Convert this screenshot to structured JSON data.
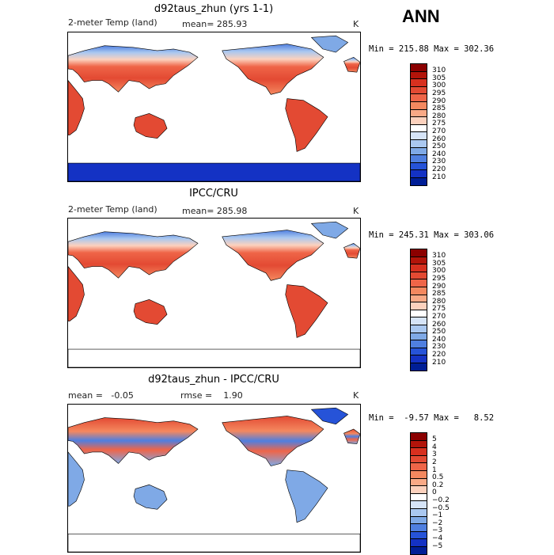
{
  "season": "ANN",
  "units": "K",
  "panels": [
    {
      "title": "d92taus_zhun (yrs 1-1)",
      "variable": "2-meter Temp (land)",
      "stat_text": "mean= 285.93",
      "minmax": "Min = 215.88 Max = 302.36",
      "show_antarctica": true,
      "cbar_labels": [
        "310",
        "305",
        "300",
        "295",
        "290",
        "285",
        "280",
        "275",
        "270",
        "260",
        "250",
        "240",
        "230",
        "220",
        "210"
      ],
      "cbar_colors": [
        "#8b0000",
        "#b2140a",
        "#d7301f",
        "#e34a33",
        "#ef6548",
        "#f4885f",
        "#f9a986",
        "#fcd1bd",
        "#ffffff",
        "#d6e4f7",
        "#aac8f0",
        "#7fa9e6",
        "#4f7fe0",
        "#2653d8",
        "#1432c4",
        "#001e96"
      ]
    },
    {
      "title": "IPCC/CRU",
      "variable": "2-meter Temp (land)",
      "stat_text": "mean= 285.98",
      "minmax": "Min = 245.31 Max = 303.06",
      "show_antarctica": false,
      "cbar_labels": [
        "310",
        "305",
        "300",
        "295",
        "290",
        "285",
        "280",
        "275",
        "270",
        "260",
        "250",
        "240",
        "230",
        "220",
        "210"
      ],
      "cbar_colors": [
        "#8b0000",
        "#b2140a",
        "#d7301f",
        "#e34a33",
        "#ef6548",
        "#f4885f",
        "#f9a986",
        "#fcd1bd",
        "#ffffff",
        "#d6e4f7",
        "#aac8f0",
        "#7fa9e6",
        "#4f7fe0",
        "#2653d8",
        "#1432c4",
        "#001e96"
      ]
    },
    {
      "title": "d92taus_zhun - IPCC/CRU",
      "stat_mean": "mean =   -0.05",
      "stat_rmse": "rmse =    1.90",
      "minmax": "Min =  -9.57 Max =   8.52",
      "show_antarctica": false,
      "cbar_labels": [
        "5",
        "4",
        "3",
        "2",
        "1",
        "0.5",
        "0.2",
        "0",
        "−0.2",
        "−0.5",
        "−1",
        "−2",
        "−3",
        "−4",
        "−5"
      ],
      "cbar_colors": [
        "#8b0000",
        "#b2140a",
        "#d7301f",
        "#e34a33",
        "#ef6548",
        "#f4885f",
        "#f9a986",
        "#fcd1bd",
        "#ffffff",
        "#d6e4f7",
        "#aac8f0",
        "#7fa9e6",
        "#4f7fe0",
        "#2653d8",
        "#1432c4",
        "#001e96"
      ]
    }
  ]
}
